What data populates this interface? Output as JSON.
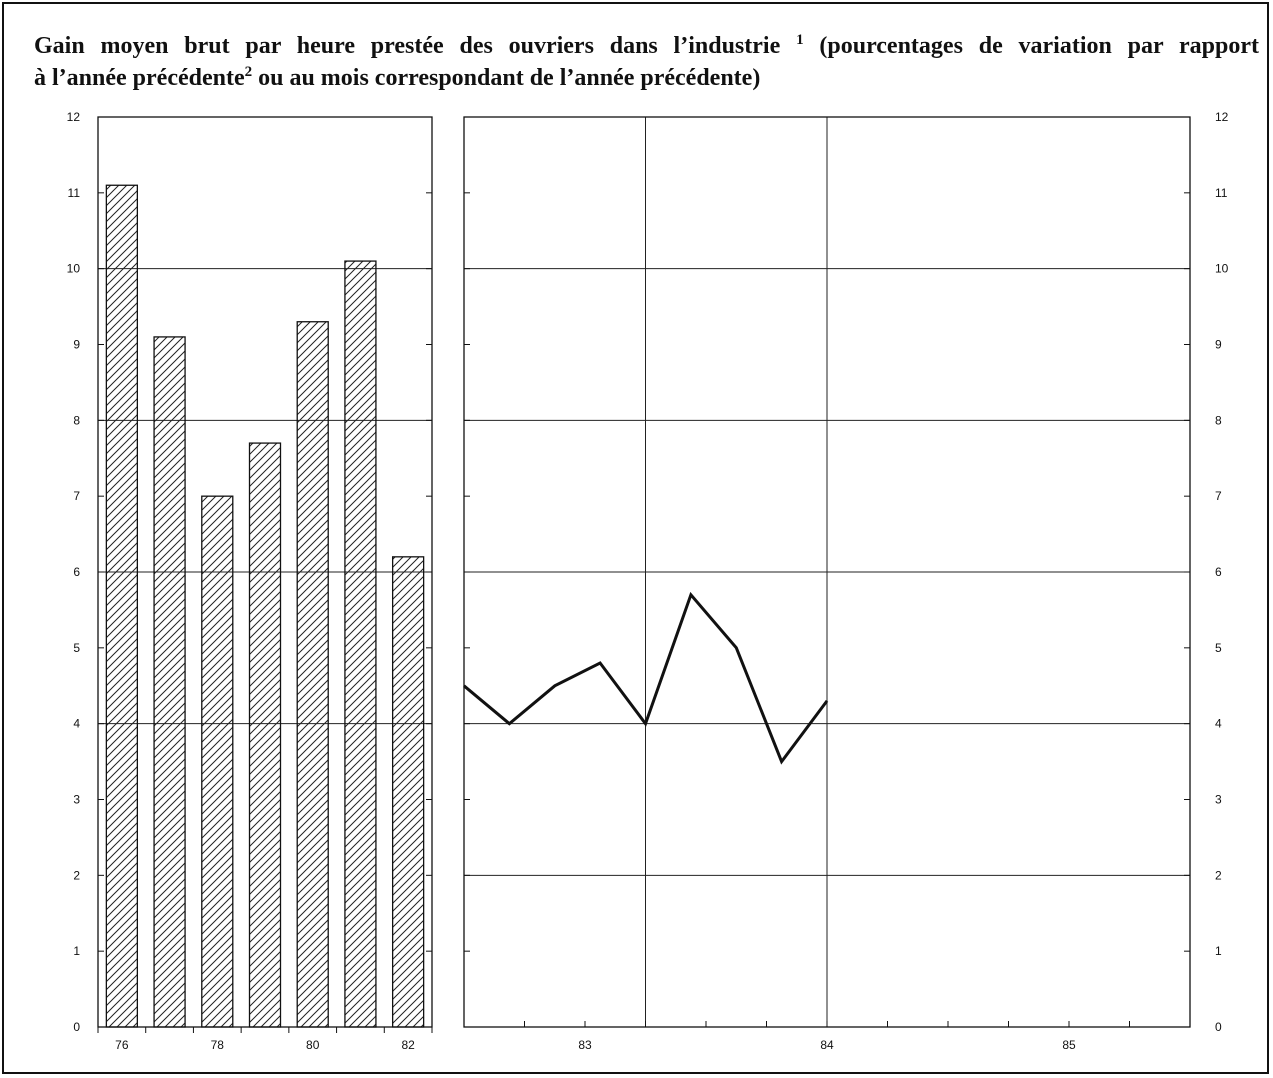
{
  "title": {
    "line1": "Gain moyen brut par heure prestée des ouvriers dans l’industrie",
    "fn1": "1",
    "line1b": "(pourcentages de variation par rapport",
    "line2": "à l’année précédente",
    "fn2": "2",
    "line2b": "ou au mois correspondant de l’année précédente)"
  },
  "chart_data": [
    {
      "type": "bar",
      "categories": [
        "76",
        "77",
        "78",
        "79",
        "80",
        "81",
        "82"
      ],
      "tick_labels": [
        "76",
        "",
        "78",
        "",
        "80",
        "",
        "82"
      ],
      "values": [
        11.1,
        9.1,
        7.0,
        7.7,
        9.3,
        10.1,
        6.2
      ],
      "ylim": [
        0,
        12
      ],
      "yticks": [
        0,
        1,
        2,
        3,
        4,
        5,
        6,
        7,
        8,
        9,
        10,
        11,
        12
      ],
      "gridlines": [
        4,
        6,
        8,
        10
      ],
      "grid": true,
      "pattern": "diagonal-hatch"
    },
    {
      "type": "line",
      "x_labels": [
        "83",
        "84",
        "85"
      ],
      "xlim": [
        0,
        24
      ],
      "ylim": [
        0,
        12
      ],
      "yticks": [
        0,
        1,
        2,
        3,
        4,
        5,
        6,
        7,
        8,
        9,
        10,
        11,
        12
      ],
      "gridlines": [
        2,
        4,
        6,
        8,
        10
      ],
      "x_gridlines": [
        6,
        12
      ],
      "grid": true,
      "series": [
        {
          "x": [
            0,
            1.5,
            3,
            4.5,
            6,
            7.5,
            9,
            10.5,
            12
          ],
          "values": [
            4.5,
            4.0,
            4.5,
            4.8,
            4.0,
            5.7,
            5.0,
            3.5,
            4.3
          ]
        }
      ]
    }
  ]
}
